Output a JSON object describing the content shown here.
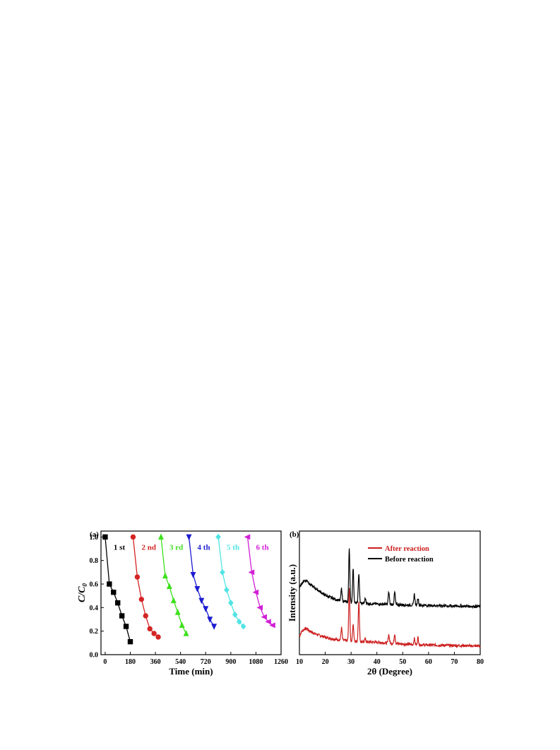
{
  "chart_data": [
    {
      "panel_label": "(a)",
      "type": "line",
      "xlabel": "Time (min)",
      "ylabel_main": "C/C",
      "ylabel_sub": "0",
      "xlim": [
        -30,
        1260
      ],
      "ylim": [
        0.0,
        1.05
      ],
      "xticks": [
        0,
        180,
        360,
        540,
        720,
        900,
        1080,
        1260
      ],
      "yticks": [
        0.0,
        0.2,
        0.4,
        0.6,
        0.8,
        1.0
      ],
      "grid": false,
      "series": [
        {
          "name": "1 st",
          "color": "#000000",
          "marker": "square",
          "x": [
            0,
            30,
            60,
            90,
            120,
            150,
            180
          ],
          "y": [
            1.0,
            0.6,
            0.53,
            0.44,
            0.33,
            0.24,
            0.11
          ]
        },
        {
          "name": "2 nd",
          "color": "#d42424",
          "marker": "circle",
          "x": [
            200,
            230,
            260,
            290,
            320,
            350,
            380
          ],
          "y": [
            1.0,
            0.66,
            0.47,
            0.33,
            0.22,
            0.18,
            0.15
          ]
        },
        {
          "name": "3 rd",
          "color": "#3ee01c",
          "marker": "triangle-up",
          "x": [
            400,
            430,
            460,
            490,
            520,
            550,
            580
          ],
          "y": [
            1.0,
            0.67,
            0.58,
            0.46,
            0.36,
            0.25,
            0.18
          ]
        },
        {
          "name": "4 th",
          "color": "#1c1cd0",
          "marker": "triangle-down",
          "x": [
            600,
            630,
            660,
            690,
            720,
            750,
            780
          ],
          "y": [
            1.0,
            0.68,
            0.56,
            0.46,
            0.39,
            0.3,
            0.24
          ]
        },
        {
          "name": "5 th",
          "color": "#52e4e4",
          "marker": "diamond",
          "x": [
            810,
            840,
            870,
            900,
            930,
            960,
            990
          ],
          "y": [
            1.0,
            0.7,
            0.55,
            0.44,
            0.34,
            0.28,
            0.24
          ]
        },
        {
          "name": "6 th",
          "color": "#d21fd6",
          "marker": "triangle-left",
          "x": [
            1020,
            1050,
            1080,
            1110,
            1140,
            1170,
            1200
          ],
          "y": [
            1.0,
            0.7,
            0.53,
            0.4,
            0.32,
            0.28,
            0.25
          ]
        }
      ]
    },
    {
      "panel_label": "(b)",
      "type": "line",
      "xlabel": "2θ (Degree)",
      "ylabel": "Intensity (a.u.)",
      "xlim": [
        10,
        80
      ],
      "xticks": [
        10,
        20,
        30,
        40,
        50,
        60,
        70,
        80
      ],
      "ylim": [
        0,
        100
      ],
      "grid": false,
      "legend_position": "top-right",
      "series": [
        {
          "name": "After reaction",
          "color": "#cc1f1f",
          "baseline": [
            [
              10,
              15
            ],
            [
              11,
              19
            ],
            [
              12,
              21
            ],
            [
              13,
              21
            ],
            [
              14,
              19
            ],
            [
              16,
              17
            ],
            [
              20,
              14
            ],
            [
              25,
              12
            ],
            [
              30,
              11
            ],
            [
              40,
              10
            ],
            [
              55,
              8
            ],
            [
              80,
              7
            ]
          ],
          "peaks": [
            [
              26.3,
              10
            ],
            [
              29.3,
              43
            ],
            [
              30.8,
              14
            ],
            [
              33.0,
              33
            ],
            [
              35.5,
              2
            ],
            [
              44.6,
              7
            ],
            [
              46.9,
              8
            ],
            [
              54.5,
              5
            ],
            [
              55.9,
              6
            ]
          ]
        },
        {
          "name": "Before reaction",
          "color": "#000000",
          "baseline": [
            [
              10,
              54
            ],
            [
              11,
              58
            ],
            [
              12,
              60
            ],
            [
              13,
              60
            ],
            [
              14,
              57
            ],
            [
              16,
              54
            ],
            [
              20,
              48
            ],
            [
              25,
              44
            ],
            [
              30,
              42
            ],
            [
              40,
              41
            ],
            [
              55,
              40
            ],
            [
              80,
              39
            ]
          ],
          "peaks": [
            [
              26.3,
              10
            ],
            [
              29.3,
              44
            ],
            [
              30.8,
              28
            ],
            [
              33.0,
              24
            ],
            [
              35.5,
              4
            ],
            [
              44.6,
              10
            ],
            [
              46.9,
              10
            ],
            [
              54.5,
              9
            ],
            [
              55.9,
              6
            ]
          ]
        }
      ]
    }
  ]
}
